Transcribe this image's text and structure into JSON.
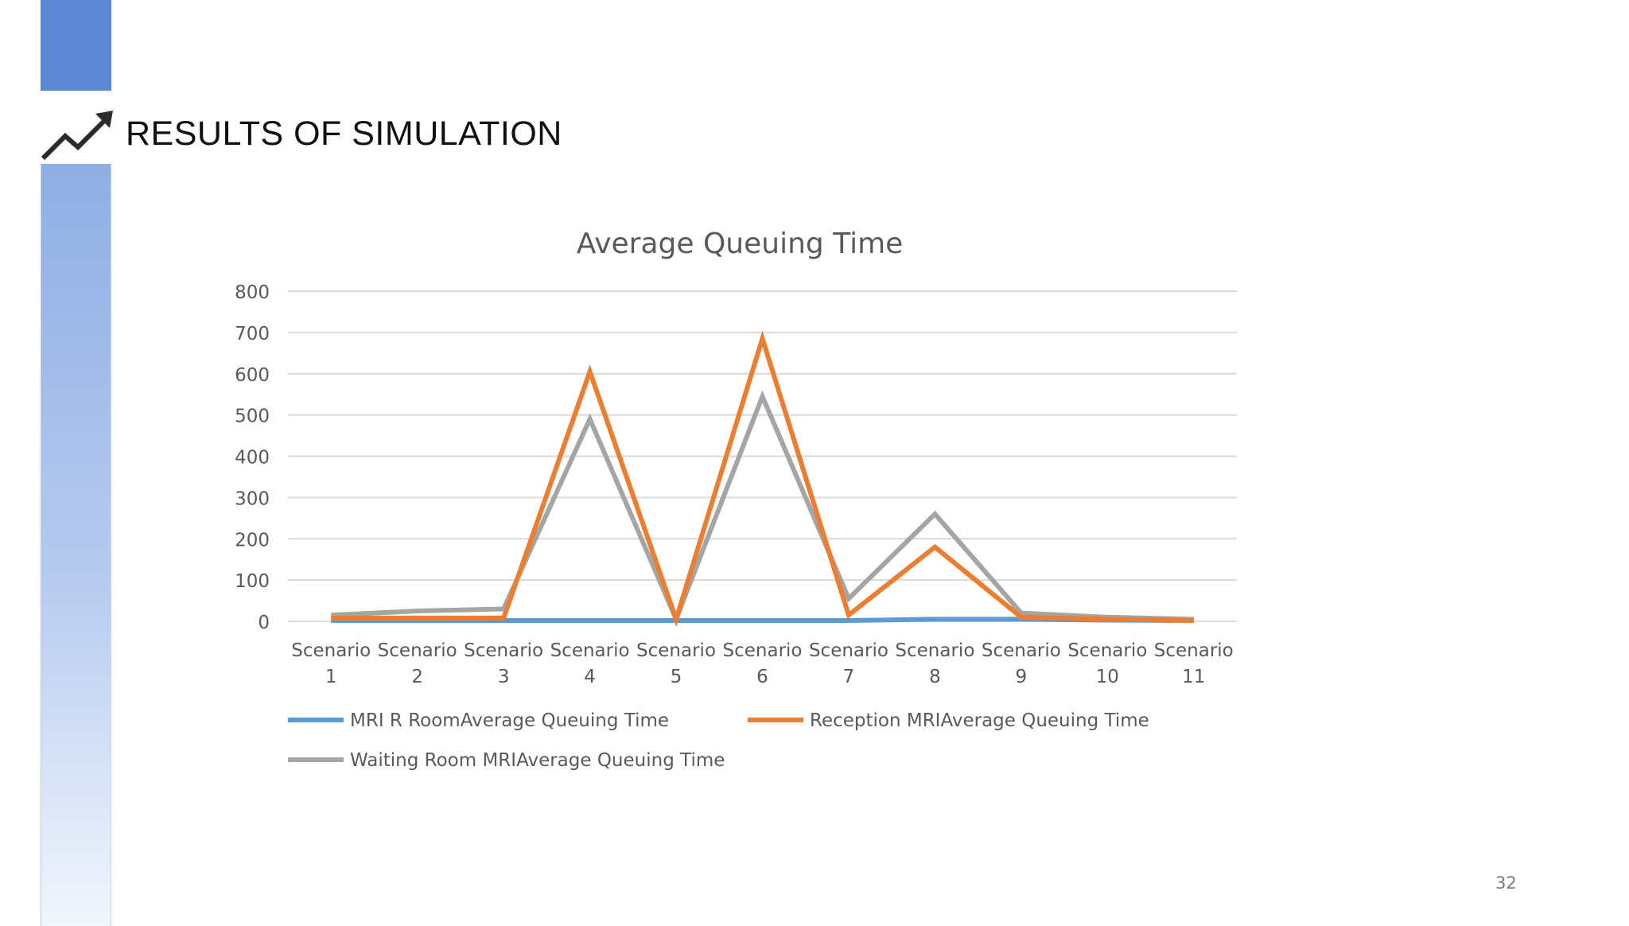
{
  "slide": {
    "title": "RESULTS OF SIMULATION",
    "page_number": "32",
    "icon": "trend-up-arrow-icon"
  },
  "chart_data": {
    "type": "line",
    "title": "Average Queuing Time",
    "xlabel": "",
    "ylabel": "",
    "categories": [
      [
        "Scenario",
        "1"
      ],
      [
        "Scenario",
        "2"
      ],
      [
        "Scenario",
        "3"
      ],
      [
        "Scenario",
        "4"
      ],
      [
        "Scenario",
        "5"
      ],
      [
        "Scenario",
        "6"
      ],
      [
        "Scenario",
        "7"
      ],
      [
        "Scenario",
        "8"
      ],
      [
        "Scenario",
        "9"
      ],
      [
        "Scenario",
        "10"
      ],
      [
        "Scenario",
        "11"
      ]
    ],
    "ylim": [
      0,
      800
    ],
    "yticks": [
      0,
      100,
      200,
      300,
      400,
      500,
      600,
      700,
      800
    ],
    "grid": true,
    "legend_position": "bottom",
    "series": [
      {
        "name": "MRI R RoomAverage Queuing Time",
        "color": "#5b9bd5",
        "values": [
          2,
          2,
          2,
          2,
          2,
          2,
          2,
          5,
          5,
          3,
          2
        ]
      },
      {
        "name": "Waiting Room MRIAverage Queuing Time",
        "color": "#a5a5a5",
        "values": [
          15,
          25,
          30,
          490,
          5,
          545,
          55,
          260,
          20,
          10,
          5
        ]
      },
      {
        "name": "Reception MRIAverage Queuing Time",
        "color": "#ed7d31",
        "values": [
          8,
          8,
          8,
          605,
          5,
          685,
          15,
          180,
          10,
          5,
          2
        ]
      }
    ],
    "legend_order": [
      0,
      2,
      1
    ]
  }
}
